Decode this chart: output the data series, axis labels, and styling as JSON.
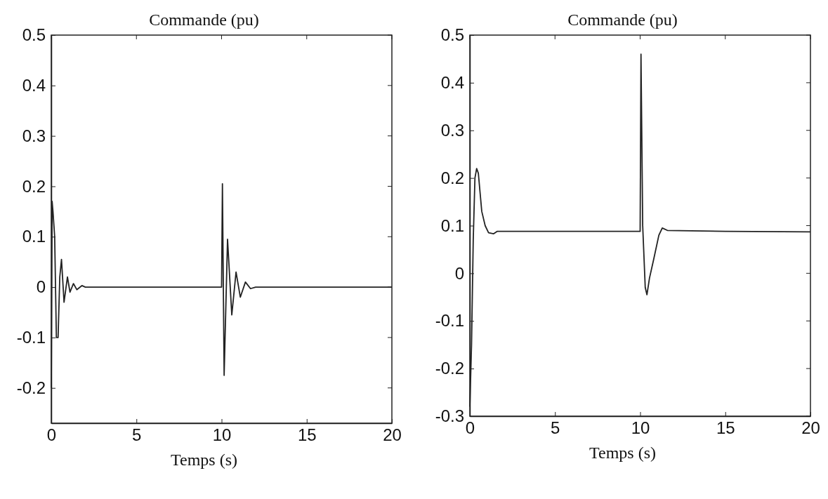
{
  "chart_data": [
    {
      "type": "line",
      "title": "Commande (pu)",
      "xlabel": "Temps (s)",
      "xlim": [
        0,
        20
      ],
      "xticks": [
        0,
        5,
        10,
        15,
        20
      ],
      "ylim": [
        -0.27,
        0.5
      ],
      "yticks": [
        -0.2,
        -0.1,
        0,
        0.1,
        0.2,
        0.3,
        0.4,
        0.5
      ],
      "grid": false,
      "series": [
        {
          "color": "#222222",
          "x": [
            0,
            0.05,
            0.1,
            0.2,
            0.3,
            0.4,
            0.5,
            0.6,
            0.75,
            0.95,
            1.1,
            1.3,
            1.5,
            1.8,
            2,
            10,
            10.05,
            10.15,
            10.35,
            10.6,
            10.85,
            11.1,
            11.4,
            11.7,
            12,
            20
          ],
          "values": [
            -0.2,
            0.17,
            0.15,
            0.1,
            -0.1,
            -0.1,
            0.02,
            0.055,
            -0.03,
            0.02,
            -0.01,
            0.007,
            -0.005,
            0.003,
            0,
            0,
            0.205,
            -0.175,
            0.095,
            -0.055,
            0.03,
            -0.02,
            0.01,
            -0.003,
            0,
            0
          ]
        }
      ]
    },
    {
      "type": "line",
      "title": "Commande (pu)",
      "xlabel": "Temps (s)",
      "xlim": [
        0,
        20
      ],
      "xticks": [
        0,
        5,
        10,
        15,
        20
      ],
      "ylim": [
        -0.3,
        0.5
      ],
      "yticks": [
        -0.3,
        -0.2,
        -0.1,
        0,
        0.1,
        0.2,
        0.3,
        0.4,
        0.5
      ],
      "grid": false,
      "series": [
        {
          "color": "#222222",
          "x": [
            0,
            0.1,
            0.2,
            0.3,
            0.4,
            0.5,
            0.6,
            0.7,
            0.9,
            1.1,
            1.4,
            1.6,
            10,
            10.05,
            10.15,
            10.3,
            10.4,
            10.55,
            10.8,
            11.1,
            11.3,
            11.6,
            15,
            20
          ],
          "values": [
            -0.28,
            -0.15,
            0.07,
            0.2,
            0.22,
            0.21,
            0.17,
            0.13,
            0.1,
            0.085,
            0.083,
            0.088,
            0.088,
            0.46,
            0.1,
            -0.03,
            -0.045,
            -0.01,
            0.03,
            0.08,
            0.095,
            0.09,
            0.088,
            0.087
          ]
        }
      ]
    }
  ]
}
